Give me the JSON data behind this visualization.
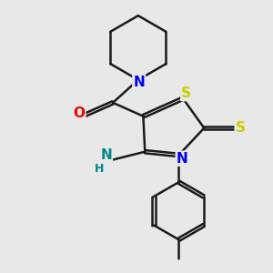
{
  "bg_color": "#e8e8e8",
  "bond_color": "#1a1a1a",
  "bond_width": 1.8,
  "dbo": 0.018,
  "atom_colors": {
    "N": "#0000ee",
    "O": "#ee0000",
    "S": "#cccc00",
    "NH2_N": "#008888",
    "C": "#1a1a1a"
  },
  "fs": 11
}
